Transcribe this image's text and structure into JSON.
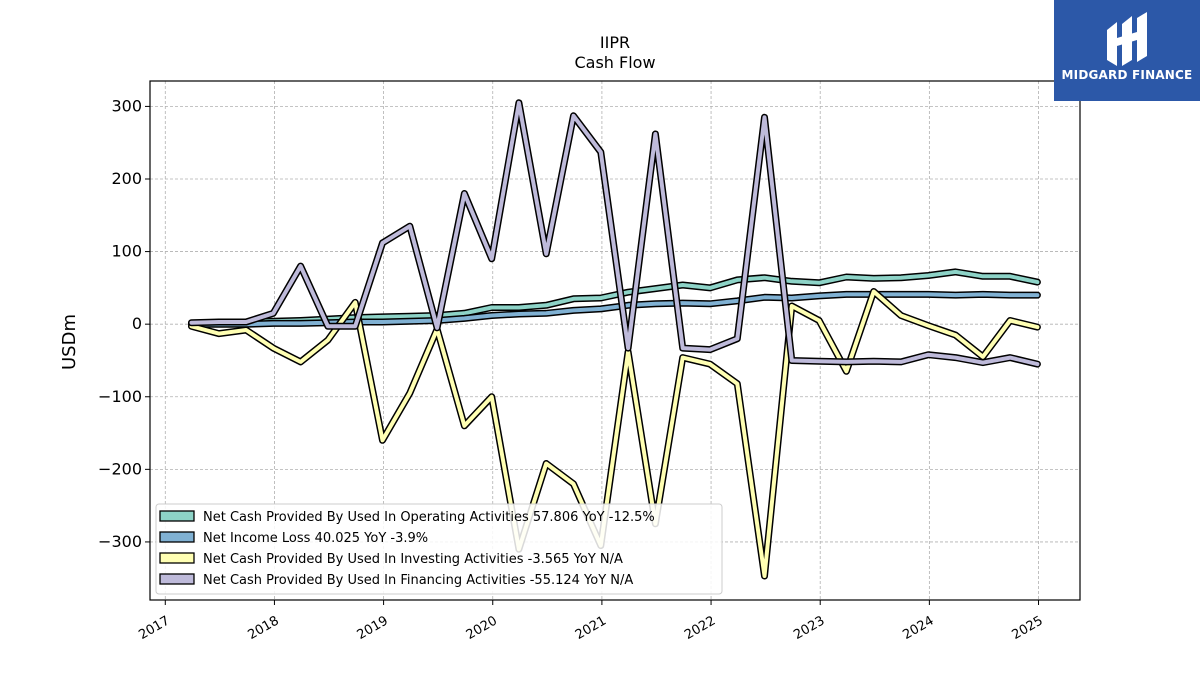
{
  "chart_data": {
    "type": "line",
    "title": "IIPR",
    "subtitle": "Cash Flow",
    "ylabel": "USDm",
    "xlabel": "",
    "ylim": [
      -380,
      335
    ],
    "xlim": [
      2016.86,
      2025.38
    ],
    "yticks": [
      300,
      200,
      100,
      0,
      -100,
      -200,
      -300
    ],
    "ytick_labels": [
      "300",
      "200",
      "100",
      "0",
      "−100",
      "−200",
      "−300"
    ],
    "xticks": [
      2017,
      2018,
      2019,
      2020,
      2021,
      2022,
      2023,
      2024,
      2025
    ],
    "xtick_labels": [
      "2017",
      "2018",
      "2019",
      "2020",
      "2021",
      "2022",
      "2023",
      "2024",
      "2025"
    ],
    "grid": true,
    "legend_position": "lower-left",
    "x": [
      2017.24,
      2017.49,
      2017.74,
      2017.99,
      2018.24,
      2018.49,
      2018.74,
      2018.99,
      2019.24,
      2019.49,
      2019.74,
      2019.99,
      2020.24,
      2020.49,
      2020.74,
      2020.99,
      2021.24,
      2021.49,
      2021.74,
      2021.99,
      2022.24,
      2022.49,
      2022.74,
      2022.99,
      2023.24,
      2023.49,
      2023.74,
      2023.99,
      2024.24,
      2024.49,
      2024.74,
      2024.99
    ],
    "series": [
      {
        "name": "Net Cash Provided By Used In Operating Activities",
        "legend": "Net Cash Provided By Used In Operating Activities  57.806 YoY -12.5%",
        "color": "#8dd3c7",
        "values": [
          1,
          2,
          3,
          4,
          5,
          7,
          9,
          10,
          11,
          12,
          15,
          23,
          23,
          26,
          35,
          36,
          44,
          49,
          54,
          50,
          61,
          64,
          59,
          57,
          65,
          63,
          64,
          67,
          72,
          66,
          66,
          58
        ]
      },
      {
        "name": "Net Income Loss",
        "legend": "Net Income Loss  40.025 YoY -3.9%",
        "color": "#80b1d3",
        "values": [
          0,
          0,
          0,
          1,
          1,
          2,
          3,
          3,
          4,
          5,
          8,
          12,
          14,
          15,
          19,
          21,
          26,
          28,
          29,
          28,
          32,
          37,
          36,
          39,
          41,
          41,
          41,
          41,
          40,
          41,
          40,
          40
        ]
      },
      {
        "name": "Net Cash Provided By Used In Investing Activities",
        "legend": "Net Cash Provided By Used In Investing Activities  -3.565 YoY N/A",
        "color": "#ffffb3",
        "values": [
          -3,
          -13,
          -8,
          -33,
          -52,
          -22,
          30,
          -160,
          -95,
          -7,
          -140,
          -100,
          -310,
          -192,
          -220,
          -305,
          -38,
          -275,
          -46,
          -55,
          -82,
          -347,
          25,
          5,
          -65,
          45,
          12,
          -2,
          -15,
          -45,
          5,
          -4
        ]
      },
      {
        "name": "Net Cash Provided By Used In Financing Activities",
        "legend": "Net Cash Provided By Used In Financing Activities  -55.124 YoY N/A",
        "color": "#bebada",
        "values": [
          2,
          3,
          3,
          15,
          80,
          -3,
          -3,
          112,
          135,
          -5,
          180,
          90,
          305,
          97,
          287,
          237,
          -33,
          262,
          -33,
          -35,
          -20,
          285,
          -50,
          -51,
          -52,
          -51,
          -52,
          -42,
          -46,
          -53,
          -46,
          -55
        ]
      }
    ]
  },
  "brand": {
    "name": "MIDGARD FINANCE",
    "icon": "midgard-logo-icon"
  }
}
